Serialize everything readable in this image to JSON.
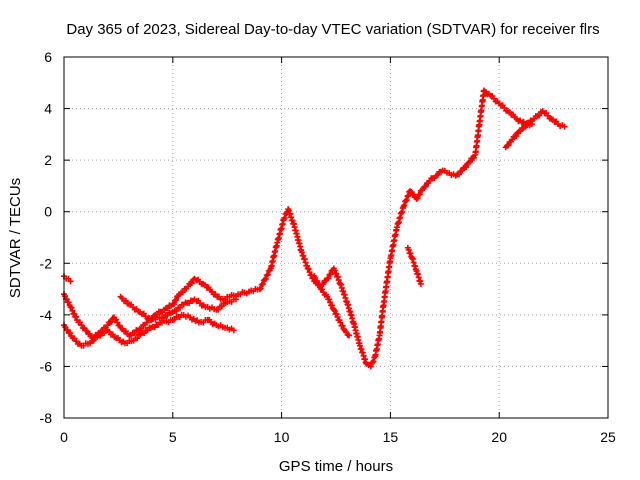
{
  "chart_data": {
    "type": "scatter",
    "title": "Day 365 of 2023, Sidereal Day-to-day VTEC variation (SDTVAR) for receiver flrs",
    "xlabel": "GPS time / hours",
    "ylabel": "SDTVAR / TECUs",
    "xlim": [
      0,
      25
    ],
    "ylim": [
      -8,
      6
    ],
    "x_ticks": [
      "0",
      "5",
      "10",
      "15",
      "20",
      "25"
    ],
    "y_ticks": [
      "-8",
      "-6",
      "-4",
      "-2",
      "0",
      "2",
      "4",
      "6"
    ],
    "grid": true,
    "legend": "none",
    "marker": "plus",
    "color": "#ff0000",
    "series": [
      {
        "x": [
          0.0,
          0.3,
          0.6,
          1.0,
          1.3,
          1.6,
          2.0,
          2.3,
          2.6,
          3.0,
          3.4,
          3.8,
          4.2,
          4.6,
          5.0,
          5.3,
          5.7,
          6.0,
          6.4,
          6.8,
          7.2,
          7.6,
          8.0,
          8.5,
          9.0,
          9.5,
          9.8,
          10.1,
          10.3,
          10.6,
          10.9,
          11.2,
          11.5,
          11.8,
          12.1,
          12.4,
          12.7,
          13.0,
          13.3,
          13.6,
          13.9,
          14.1,
          14.3,
          14.5,
          14.7,
          15.0,
          15.3,
          15.6,
          15.9,
          16.2,
          16.5,
          16.8,
          17.1,
          17.4,
          17.7,
          18.0,
          18.3,
          18.6,
          18.9,
          19.1,
          19.3,
          19.6,
          20.0,
          20.4,
          20.8,
          21.2,
          21.6,
          22.0,
          22.4,
          22.7,
          23.0
        ],
        "y": [
          -3.2,
          -3.7,
          -4.2,
          -4.6,
          -4.9,
          -4.7,
          -4.4,
          -4.1,
          -4.5,
          -4.8,
          -4.6,
          -4.3,
          -4.0,
          -3.8,
          -3.6,
          -3.2,
          -2.9,
          -2.6,
          -2.8,
          -3.1,
          -3.4,
          -3.3,
          -3.2,
          -3.1,
          -3.0,
          -2.2,
          -1.2,
          -0.3,
          0.1,
          -0.6,
          -1.5,
          -2.2,
          -2.7,
          -2.9,
          -2.6,
          -2.2,
          -2.8,
          -3.5,
          -4.3,
          -5.2,
          -5.9,
          -6.0,
          -5.6,
          -4.8,
          -3.5,
          -1.8,
          -0.6,
          0.2,
          0.8,
          0.5,
          0.9,
          1.2,
          1.4,
          1.6,
          1.5,
          1.4,
          1.6,
          1.9,
          2.2,
          3.5,
          4.7,
          4.5,
          4.2,
          3.9,
          3.6,
          3.4,
          3.6,
          3.9,
          3.6,
          3.4,
          3.3
        ]
      },
      {
        "x": [
          0.0,
          0.4,
          0.8,
          1.2,
          1.6,
          2.0,
          2.4,
          2.8,
          3.2,
          3.6,
          4.0,
          4.5,
          5.0,
          5.4,
          5.8,
          6.2,
          6.6,
          7.0,
          7.4,
          7.8
        ],
        "y": [
          -4.4,
          -4.9,
          -5.2,
          -5.1,
          -4.8,
          -4.6,
          -4.9,
          -5.1,
          -5.0,
          -4.7,
          -4.5,
          -4.3,
          -4.2,
          -4.0,
          -4.1,
          -4.3,
          -4.2,
          -4.4,
          -4.5,
          -4.6
        ]
      },
      {
        "x": [
          2.6,
          3.0,
          3.5,
          4.0,
          4.5,
          5.0,
          5.5,
          6.0,
          6.5,
          7.0,
          7.5,
          7.9
        ],
        "y": [
          -3.3,
          -3.6,
          -3.9,
          -4.2,
          -4.1,
          -3.9,
          -3.6,
          -3.4,
          -3.7,
          -3.8,
          -3.5,
          -3.4
        ]
      },
      {
        "x": [
          11.5,
          11.8,
          12.1,
          12.4,
          12.7,
          12.9,
          13.1
        ],
        "y": [
          -2.5,
          -3.0,
          -3.3,
          -3.8,
          -4.3,
          -4.6,
          -4.8
        ]
      },
      {
        "x": [
          15.8,
          16.0,
          16.2,
          16.4
        ],
        "y": [
          -1.4,
          -1.8,
          -2.3,
          -2.8
        ]
      },
      {
        "x": [
          20.3,
          20.6,
          20.9,
          21.2,
          21.5
        ],
        "y": [
          2.5,
          2.8,
          3.1,
          3.3,
          3.4
        ]
      },
      {
        "x": [
          0.0,
          0.1,
          0.2,
          0.3
        ],
        "y": [
          -2.5,
          -2.6,
          -2.6,
          -2.7
        ]
      }
    ]
  }
}
